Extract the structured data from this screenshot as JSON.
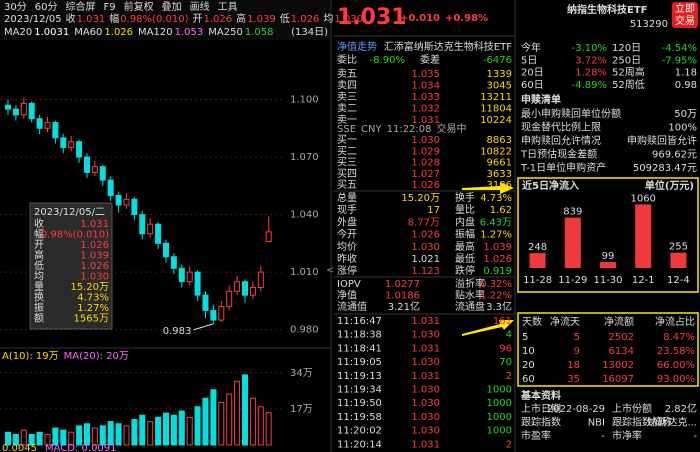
{
  "toolbar": [
    "30分",
    "60分",
    "综合屏",
    "F9",
    "前复权",
    "叠加",
    "画线",
    "工具"
  ],
  "info_line": {
    "date": "2023/12/05",
    "items": [
      [
        "收",
        "1.031"
      ],
      [
        "幅",
        "0.98%(0.010)"
      ],
      [
        "开",
        "1.026"
      ],
      [
        "高",
        "1.039"
      ],
      [
        "低",
        "1.026"
      ],
      [
        "均",
        "1.030"
      ]
    ]
  },
  "ma_line": [
    {
      "name": "MA20",
      "value": "1.0031",
      "color": "#ffffff"
    },
    {
      "name": "MA60",
      "value": "1.026",
      "color": "#ffd700"
    },
    {
      "name": "MA120",
      "value": "1.053",
      "color": "#ff66ff"
    },
    {
      "name": "MA250",
      "value": "1.058",
      "color": "#33cc33"
    }
  ],
  "range_label": "(134日)",
  "kline": {
    "type": "candlestick",
    "ylim": [
      0.972,
      1.13
    ],
    "yticks": [
      {
        "value": 1.1,
        "label": "1.100"
      },
      {
        "value": 1.07,
        "label": "1.070"
      },
      {
        "value": 1.04,
        "label": "1.040"
      },
      {
        "value": 1.01,
        "label": "1.010"
      },
      {
        "value": 0.98,
        "label": "0.980"
      }
    ],
    "candles": [
      [
        1.097,
        1.1,
        1.092,
        1.095
      ],
      [
        1.095,
        1.097,
        1.089,
        1.092
      ],
      [
        1.092,
        1.101,
        1.09,
        1.098
      ],
      [
        1.098,
        1.099,
        1.088,
        1.09
      ],
      [
        1.09,
        1.092,
        1.082,
        1.085
      ],
      [
        1.085,
        1.091,
        1.083,
        1.088
      ],
      [
        1.088,
        1.089,
        1.077,
        1.08
      ],
      [
        1.08,
        1.082,
        1.072,
        1.075
      ],
      [
        1.075,
        1.081,
        1.073,
        1.078
      ],
      [
        1.078,
        1.079,
        1.067,
        1.07
      ],
      [
        1.07,
        1.072,
        1.059,
        1.062
      ],
      [
        1.062,
        1.068,
        1.06,
        1.065
      ],
      [
        1.065,
        1.066,
        1.055,
        1.058
      ],
      [
        1.058,
        1.06,
        1.047,
        1.05
      ],
      [
        1.05,
        1.052,
        1.041,
        1.045
      ],
      [
        1.045,
        1.051,
        1.043,
        1.048
      ],
      [
        1.048,
        1.049,
        1.037,
        1.04
      ],
      [
        1.04,
        1.042,
        1.027,
        1.03
      ],
      [
        1.03,
        1.038,
        1.028,
        1.035
      ],
      [
        1.035,
        1.036,
        1.022,
        1.025
      ],
      [
        1.025,
        1.027,
        1.015,
        1.018
      ],
      [
        1.018,
        1.02,
        1.009,
        1.012
      ],
      [
        1.012,
        1.014,
        1.002,
        1.005
      ],
      [
        1.005,
        1.013,
        1.003,
        1.01
      ],
      [
        1.01,
        1.011,
        0.995,
        0.998
      ],
      [
        0.998,
        1.0,
        0.986,
        0.99
      ],
      [
        0.99,
        0.993,
        0.983,
        0.985
      ],
      [
        0.985,
        0.995,
        0.984,
        0.992
      ],
      [
        0.992,
        1.003,
        0.99,
        1.0
      ],
      [
        1.0,
        1.008,
        0.998,
        1.005
      ],
      [
        1.005,
        1.006,
        0.994,
        0.998
      ],
      [
        0.998,
        1.005,
        0.996,
        1.002
      ],
      [
        1.002,
        1.013,
        1.0,
        1.01
      ],
      [
        1.026,
        1.039,
        1.026,
        1.031
      ]
    ],
    "low_label": {
      "value": 0.983,
      "label": "0.983"
    },
    "tooltip": {
      "title": "2023/12/05/二",
      "rows": [
        [
          "收",
          "1.031"
        ],
        [
          "幅",
          "0.98%(0.010)"
        ],
        [
          "开",
          "1.026"
        ],
        [
          "高",
          "1.039"
        ],
        [
          "低",
          "1.026"
        ],
        [
          "均",
          "1.030"
        ],
        [
          "量",
          "15.20万"
        ],
        [
          "换",
          "4.73%"
        ],
        [
          "振",
          "1.27%"
        ],
        [
          "额",
          "1565万"
        ]
      ]
    },
    "volume": {
      "legend": [
        "A(10): 19万",
        "MA(20): 20万"
      ],
      "ylim": [
        0,
        40
      ],
      "yticks": [
        {
          "value": 34,
          "label": "34万"
        },
        {
          "value": 17,
          "label": "17万"
        }
      ],
      "values": [
        6,
        5,
        7,
        5,
        6,
        5,
        8,
        7,
        6,
        9,
        10,
        8,
        9,
        11,
        10,
        9,
        12,
        14,
        11,
        13,
        15,
        14,
        16,
        13,
        18,
        22,
        26,
        20,
        24,
        30,
        33,
        22,
        18,
        15.2
      ]
    },
    "macd_legend": [
      "0.0045",
      "MACD: 0.0091"
    ]
  },
  "quote": {
    "price": "1.031",
    "change": "+0.010",
    "pct": "+0.98%",
    "fund_row": [
      "净值走势",
      "汇添富纳斯达克生物科技ETF"
    ],
    "weibi": [
      "委比",
      "-8.90%",
      "委差",
      "-6476"
    ],
    "asks": [
      [
        "卖五",
        "1.035",
        "1339"
      ],
      [
        "卖四",
        "1.034",
        "3045"
      ],
      [
        "卖三",
        "1.033",
        "13211"
      ],
      [
        "卖二",
        "1.032",
        "11804"
      ],
      [
        "卖一",
        "1.031",
        "10224"
      ]
    ],
    "status": [
      "SSE",
      "CNY",
      "11:22:08",
      "交易中"
    ],
    "bids": [
      [
        "买一",
        "1.030",
        "8863"
      ],
      [
        "买二",
        "1.029",
        "10822"
      ],
      [
        "买三",
        "1.028",
        "9661"
      ],
      [
        "买四",
        "1.027",
        "3633"
      ],
      [
        "买五",
        "1.026",
        "3186"
      ]
    ],
    "stats": [
      [
        "总量",
        "15.20万",
        "换手",
        "4.73%"
      ],
      [
        "现手",
        "17",
        "量比",
        "1.62"
      ],
      [
        "外盘",
        "8.77万",
        "内盘",
        "6.43万"
      ],
      [
        "今开",
        "1.026",
        "振幅",
        "1.27%"
      ],
      [
        "均价",
        "1.030",
        "最高",
        "1.039"
      ],
      [
        "昨收",
        "1.021",
        "最低",
        "1.026"
      ],
      [
        "涨停",
        "1.123",
        "跌停",
        "0.919"
      ]
    ],
    "stats2": [
      [
        "IOPV",
        "1.0277",
        "溢折率",
        "0.32%"
      ],
      [
        "净值",
        "1.0186",
        "贴水率",
        "1.22%"
      ],
      [
        "流通值",
        "3.21亿",
        "流通盘",
        "3.3亿"
      ]
    ],
    "ticks": [
      [
        "11:16:47",
        "1.031",
        "161"
      ],
      [
        "11:18:38",
        "1.030",
        "4"
      ],
      [
        "11:18:41",
        "1.031",
        "96"
      ],
      [
        "11:19:05",
        "1.030",
        "70"
      ],
      [
        "11:19:13",
        "1.031",
        "2"
      ],
      [
        "11:19:34",
        "1.030",
        "1000"
      ],
      [
        "11:19:50",
        "1.030",
        "1000"
      ],
      [
        "11:19:58",
        "1.030",
        "1000"
      ],
      [
        "11:20:02",
        "1.030",
        "1000"
      ],
      [
        "11:20:14",
        "1.031",
        "2"
      ]
    ]
  },
  "info": {
    "title": "纳指生物科技ETF",
    "code": "513290",
    "button": [
      "立即",
      "交易"
    ],
    "perf": [
      [
        "今年",
        "-3.10%",
        "120日",
        "-4.54%"
      ],
      [
        "5日",
        "3.72%",
        "250日",
        "-7.95%"
      ],
      [
        "20日",
        "1.28%",
        "52周高",
        "1.18"
      ],
      [
        "60日",
        "-4.89%",
        "52周低",
        "0.98"
      ]
    ],
    "redeem_title": "申赎清单",
    "redeem": [
      [
        "最小申购赎回单位份额",
        "50万"
      ],
      [
        "现金替代比例上限",
        "100%"
      ],
      [
        "申购赎回允许情况",
        "申购赎回皆允许"
      ],
      [
        "T日预估现金差额",
        "969.62元"
      ],
      [
        "T-1日单位申购资产",
        "509283.47元"
      ]
    ],
    "inflow": {
      "type": "bar",
      "title": "近5日净流入",
      "unit": "单位(万元)",
      "categories": [
        "11-28",
        "11-29",
        "11-30",
        "12-1",
        "12-4"
      ],
      "values": [
        248,
        839,
        99,
        1060,
        255
      ],
      "ylim": [
        0,
        1100
      ],
      "color": "#f03a3a"
    },
    "flow_table": {
      "header": [
        "天数",
        "净流天",
        "净流额",
        "净流占比"
      ],
      "rows": [
        [
          "5",
          "5",
          "2502",
          "8.47%"
        ],
        [
          "10",
          "9",
          "6134",
          "23.58%"
        ],
        [
          "20",
          "18",
          "13002",
          "66.00%"
        ],
        [
          "60",
          "35",
          "16097",
          "93.00%"
        ]
      ]
    },
    "basic_title": "基本资料",
    "basic": [
      [
        "上市日期",
        "2022-08-29",
        "上市份额",
        "2.82亿"
      ],
      [
        "跟踪指数",
        "NBI",
        "跟踪指数简称",
        "纳斯达克..."
      ],
      [
        "市盈率",
        "-",
        "市净率",
        "-"
      ]
    ]
  }
}
